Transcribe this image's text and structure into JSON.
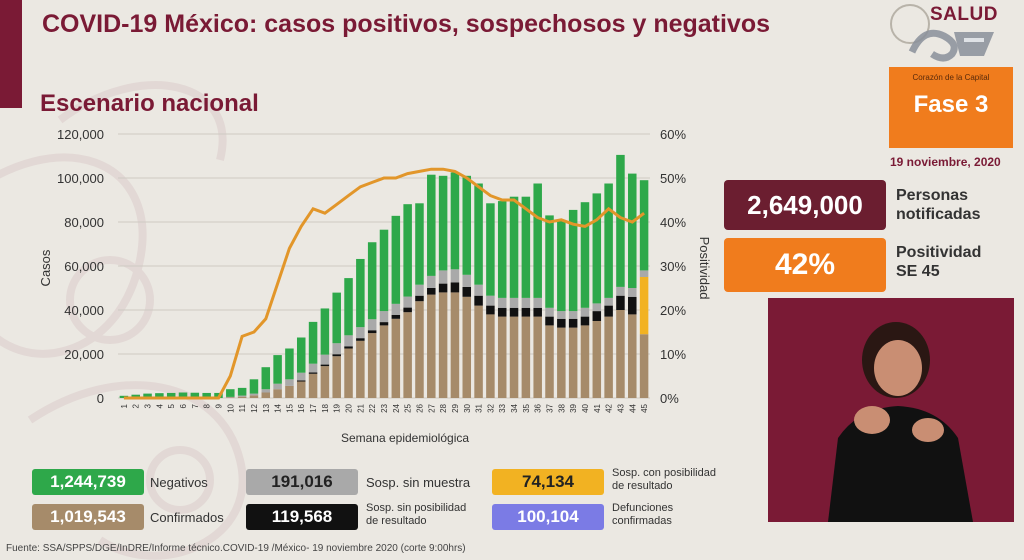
{
  "header": {
    "title": "COVID-19 México: casos positivos, sospechosos y negativos",
    "subtitle": "Escenario nacional",
    "brand": "SALUD",
    "phase_caption": "Corazón de la Capital",
    "phase": "Fase 3",
    "date": "19 noviembre, 2020"
  },
  "stats": {
    "persons_value": "2,649,000",
    "persons_label_1": "Personas",
    "persons_label_2": "notificadas",
    "positivity_value": "42%",
    "positivity_label_1": "Positividad",
    "positivity_label_2": "SE 45"
  },
  "legend": {
    "negativos_value": "1,244,739",
    "negativos_label": "Negativos",
    "sosp_sin_muestra_value": "191,016",
    "sosp_sin_muestra_label": "Sosp. sin muestra",
    "sosp_con_posibilidad_value": "74,134",
    "sosp_con_posibilidad_label_1": "Sosp. con posibilidad",
    "sosp_con_posibilidad_label_2": "de resultado",
    "confirmados_value": "1,019,543",
    "confirmados_label": "Confirmados",
    "sosp_sin_posibilidad_value": "119,568",
    "sosp_sin_posibilidad_label_1": "Sosp. sin posibilidad",
    "sosp_sin_posibilidad_label_2": "de resultado",
    "defunciones_value": "100,104",
    "defunciones_label_1": "Defunciones",
    "defunciones_label_2": "confirmadas"
  },
  "footer": "Fuente: SSA/SPPS/DGE/InDRE/Informe técnico.COVID-19 /México- 19 noviembre 2020 (corte 9:00hrs)",
  "colors": {
    "brand": "#7a1a35",
    "orange": "#f07c1d",
    "confirmados": "#a68b6a",
    "sin_posibilidad": "#111111",
    "sin_muestra": "#a9a9a9",
    "negativos": "#2ea84a",
    "con_posibilidad": "#f2b222",
    "defunciones": "#7b7be5",
    "positividad": "#e2962a"
  },
  "chart_data": {
    "type": "bar",
    "stacked": true,
    "xlabel": "Semana epidemiológica",
    "ylabel": "Casos",
    "y2label": "Positividad",
    "ylim": [
      0,
      120000
    ],
    "y2lim": [
      0,
      60
    ],
    "yticks": [
      "0",
      "20,000",
      "40,000",
      "60,000",
      "80,000",
      "100,000",
      "120,000"
    ],
    "y2ticks": [
      "0%",
      "10%",
      "20%",
      "30%",
      "40%",
      "50%",
      "60%"
    ],
    "categories": [
      "1",
      "2",
      "3",
      "4",
      "5",
      "6",
      "7",
      "8",
      "9",
      "10",
      "11",
      "12",
      "13",
      "14",
      "15",
      "16",
      "17",
      "18",
      "19",
      "20",
      "21",
      "22",
      "23",
      "24",
      "25",
      "26",
      "27",
      "28",
      "29",
      "30",
      "31",
      "32",
      "33",
      "34",
      "35",
      "36",
      "37",
      "38",
      "39",
      "40",
      "41",
      "42",
      "43",
      "44",
      "45"
    ],
    "series": [
      {
        "name": "Confirmados",
        "color": "#a68b6a",
        "values": [
          0,
          0,
          0,
          0,
          0,
          0,
          0,
          0,
          0,
          300,
          600,
          1200,
          2500,
          4000,
          5500,
          7500,
          11000,
          14500,
          19000,
          22500,
          26000,
          29500,
          33000,
          36000,
          39000,
          44000,
          47000,
          48000,
          48000,
          46000,
          42000,
          38000,
          37000,
          37000,
          37000,
          37000,
          33000,
          32000,
          32000,
          33000,
          35000,
          37000,
          40000,
          38000,
          29000
        ]
      },
      {
        "name": "Sosp. sin posibilidad de resultado",
        "color": "#111111",
        "values": [
          0,
          0,
          0,
          0,
          0,
          0,
          0,
          0,
          0,
          0,
          0,
          0,
          0,
          0,
          0,
          500,
          600,
          700,
          900,
          1000,
          1200,
          1300,
          1500,
          1800,
          2100,
          2500,
          3000,
          4000,
          4500,
          4500,
          4500,
          4000,
          4000,
          4000,
          4000,
          4000,
          4000,
          4000,
          4000,
          4000,
          4500,
          5000,
          6500,
          8000,
          0
        ]
      },
      {
        "name": "Sosp. con posibilidad de resultado",
        "color": "#f2b222",
        "values": [
          0,
          0,
          0,
          0,
          0,
          0,
          0,
          0,
          0,
          0,
          0,
          0,
          0,
          0,
          0,
          0,
          0,
          0,
          0,
          0,
          0,
          0,
          0,
          0,
          0,
          0,
          0,
          0,
          0,
          0,
          0,
          0,
          0,
          0,
          0,
          0,
          0,
          0,
          0,
          0,
          0,
          0,
          0,
          0,
          26000
        ]
      },
      {
        "name": "Sosp. sin muestra",
        "color": "#a9a9a9",
        "values": [
          0,
          0,
          0,
          0,
          0,
          0,
          0,
          0,
          0,
          200,
          500,
          800,
          1500,
          2500,
          3000,
          3500,
          4000,
          4500,
          5000,
          5000,
          5000,
          5000,
          5000,
          5000,
          5000,
          5000,
          5500,
          6000,
          6000,
          5500,
          5000,
          4500,
          4500,
          4500,
          4500,
          4500,
          4000,
          3500,
          3500,
          4000,
          3500,
          3500,
          4000,
          4000,
          3000
        ]
      },
      {
        "name": "Negativos",
        "color": "#2ea84a",
        "values": [
          1000,
          1500,
          2000,
          2200,
          2300,
          2500,
          2400,
          2300,
          2300,
          3500,
          3500,
          6500,
          10000,
          13000,
          14000,
          16000,
          19000,
          21000,
          23000,
          26000,
          31000,
          35000,
          37000,
          40000,
          42000,
          37000,
          46000,
          43000,
          44000,
          45000,
          46000,
          42000,
          44000,
          46000,
          46000,
          52000,
          42000,
          41000,
          46000,
          48000,
          50000,
          52000,
          60000,
          52000,
          41000
        ]
      }
    ],
    "positividad_line": {
      "name": "Positividad",
      "color": "#e2962a",
      "values": [
        0,
        0,
        0,
        0,
        0,
        0,
        0,
        0,
        0,
        5,
        14,
        15,
        18,
        26,
        34,
        39,
        43,
        42,
        44,
        46,
        48,
        49,
        50,
        50,
        51,
        51.5,
        52,
        52,
        51.5,
        50,
        48,
        46,
        45,
        45,
        43,
        41,
        40,
        40.5,
        39.5,
        39,
        40.5,
        43,
        41,
        40,
        42
      ]
    }
  }
}
